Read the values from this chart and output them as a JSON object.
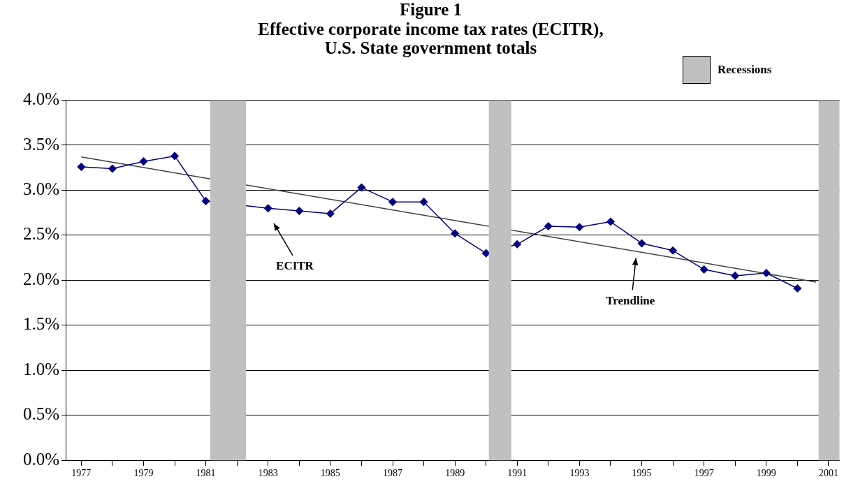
{
  "chart_data": {
    "type": "line",
    "title": [
      "Figure 1",
      "Effective corporate income tax rates (ECITR),",
      "U.S. State government totals"
    ],
    "x": [
      1977,
      1978,
      1979,
      1980,
      1981,
      1982,
      1983,
      1984,
      1985,
      1986,
      1987,
      1988,
      1989,
      1990,
      1991,
      1992,
      1993,
      1994,
      1995,
      1996,
      1997,
      1998,
      1999,
      2000
    ],
    "series": [
      {
        "color": "#000080",
        "marker": "diamond",
        "values": [
          3.26,
          3.24,
          3.32,
          3.38,
          2.88,
          null,
          2.8,
          2.77,
          2.74,
          3.03,
          2.87,
          2.87,
          2.52,
          2.3,
          2.4,
          2.6,
          2.59,
          2.65,
          2.41,
          2.33,
          2.12,
          2.05,
          2.08,
          1.91
        ]
      },
      {
        "type": "line",
        "color": "#404040",
        "marker": "none",
        "x": [
          1977,
          2000.6
        ],
        "values": [
          3.37,
          1.98
        ]
      }
    ],
    "xlim": [
      1976.5,
      2001.35
    ],
    "xticks": [
      {
        "value": 1977,
        "label": "1977"
      },
      {
        "value": 1978,
        "label": null
      },
      {
        "value": 1979,
        "label": "1979"
      },
      {
        "value": 1980,
        "label": null
      },
      {
        "value": 1981,
        "label": "1981"
      },
      {
        "value": 1982,
        "label": null
      },
      {
        "value": 1983,
        "label": "1983"
      },
      {
        "value": 1984,
        "label": null
      },
      {
        "value": 1985,
        "label": "1985"
      },
      {
        "value": 1986,
        "label": null
      },
      {
        "value": 1987,
        "label": "1987"
      },
      {
        "value": 1988,
        "label": null
      },
      {
        "value": 1989,
        "label": "1989"
      },
      {
        "value": 1990,
        "label": null
      },
      {
        "value": 1991,
        "label": "1991"
      },
      {
        "value": 1992,
        "label": null
      },
      {
        "value": 1993,
        "label": "1993"
      },
      {
        "value": 1994,
        "label": null
      },
      {
        "value": 1995,
        "label": "1995"
      },
      {
        "value": 1996,
        "label": null
      },
      {
        "value": 1997,
        "label": "1997"
      },
      {
        "value": 1998,
        "label": null
      },
      {
        "value": 1999,
        "label": "1999"
      },
      {
        "value": 2000,
        "label": null
      },
      {
        "value": 2001,
        "label": "2001"
      }
    ],
    "ylim": [
      0,
      4
    ],
    "yticks": [
      {
        "value": 0,
        "label": "0.0%"
      },
      {
        "value": 0.5,
        "label": "0.5%"
      },
      {
        "value": 1,
        "label": "1.0%"
      },
      {
        "value": 1.5,
        "label": "1.5%"
      },
      {
        "value": 2,
        "label": "2.0%"
      },
      {
        "value": 2.5,
        "label": "2.5%"
      },
      {
        "value": 3,
        "label": "3.0%"
      },
      {
        "value": 3.5,
        "label": "3.5%"
      },
      {
        "value": 4,
        "label": "4.0%"
      }
    ],
    "grid": "y",
    "bands": [
      {
        "axis": "x",
        "from": 1981.14,
        "to": 1982.29,
        "label": "Recessions",
        "color": "#c0c0c0"
      },
      {
        "axis": "x",
        "from": 1990.09,
        "to": 1990.81,
        "color": "#c0c0c0"
      },
      {
        "axis": "x",
        "from": 2000.68,
        "to": 2001.35,
        "color": "#c0c0c0"
      }
    ],
    "annotations": [
      "ECITR",
      "Trendline"
    ]
  }
}
